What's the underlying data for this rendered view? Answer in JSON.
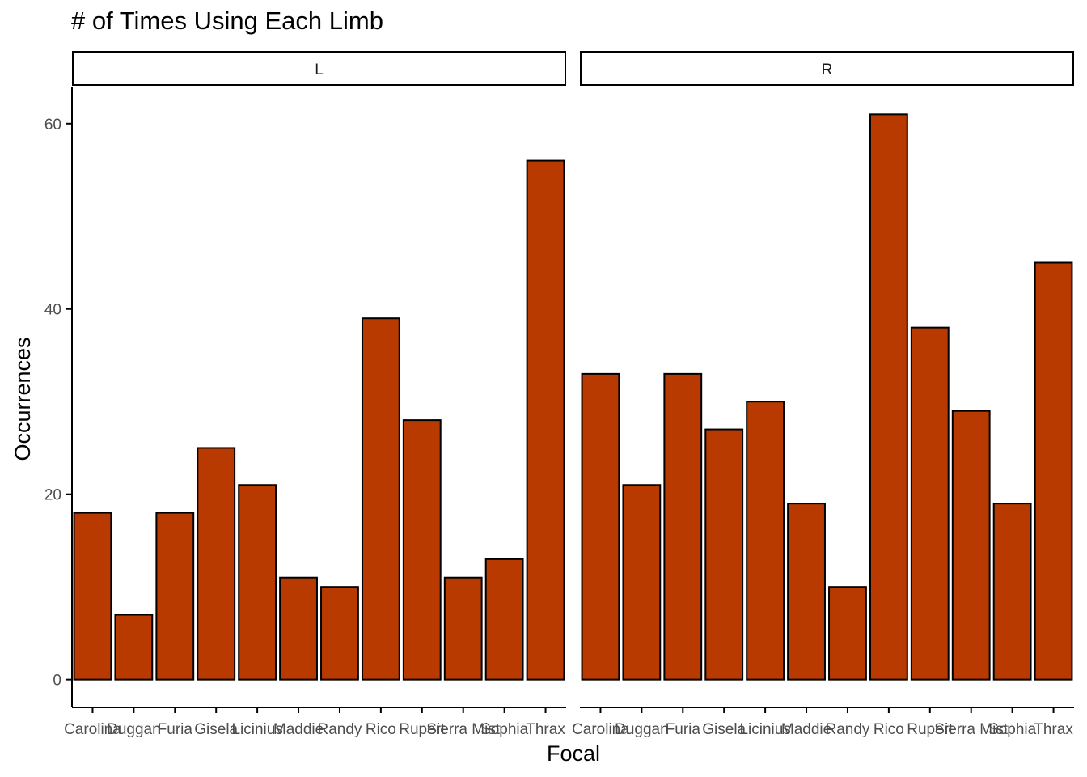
{
  "chart_data": {
    "type": "bar",
    "title": "# of Times Using Each Limb",
    "xlabel": "Focal",
    "ylabel": "Occurrences",
    "ylim": [
      -3,
      64
    ],
    "yticks": [
      0,
      20,
      40,
      60
    ],
    "bar_color": "#B83A00",
    "categories": [
      "Carolina",
      "Duggan",
      "Furia",
      "Gisela",
      "Licinius",
      "Maddie",
      "Randy",
      "Rico",
      "Rupert",
      "Sierra Mist",
      "Sophia",
      "Thrax"
    ],
    "facets": [
      {
        "label": "L",
        "values": [
          18,
          7,
          18,
          25,
          21,
          11,
          10,
          39,
          28,
          11,
          13,
          56
        ]
      },
      {
        "label": "R",
        "values": [
          33,
          21,
          33,
          27,
          30,
          19,
          10,
          61,
          38,
          29,
          19,
          45
        ]
      }
    ]
  }
}
